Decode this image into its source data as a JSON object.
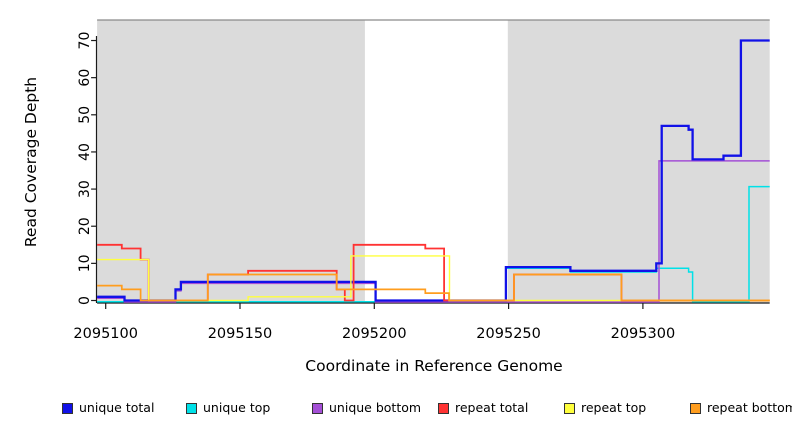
{
  "chart_data": {
    "type": "line",
    "subtype": "step-coverage-plot",
    "title": "",
    "xlabel": "Coordinate in Reference Genome",
    "ylabel": "Read Coverage Depth",
    "xlim": [
      2095096.8,
      2095347.2
    ],
    "ylim": [
      0,
      76
    ],
    "x_ticks": [
      2095100,
      2095150,
      2095200,
      2095250,
      2095300
    ],
    "y_ticks": [
      0,
      10,
      20,
      30,
      40,
      50,
      60,
      70
    ],
    "grid": false,
    "legend_position": "bottom",
    "shade_color": "#dbdbdb",
    "background_shaded_regions": [
      {
        "from": 2095096.8,
        "to": 2095196.5
      },
      {
        "from": 2095249.7,
        "to": 2095347.2
      }
    ],
    "series": [
      {
        "name": "unique total",
        "color": "#1111e8",
        "width": 2.3,
        "steps": [
          [
            2095096.8,
            1
          ],
          [
            2095107,
            0
          ],
          [
            2095126,
            3
          ],
          [
            2095128,
            5
          ],
          [
            2095200.5,
            0
          ],
          [
            2095249,
            9
          ],
          [
            2095273,
            8
          ],
          [
            2095305,
            10
          ],
          [
            2095307,
            47
          ],
          [
            2095317,
            46
          ],
          [
            2095318.5,
            38
          ],
          [
            2095330,
            39
          ],
          [
            2095336.5,
            70
          ]
        ]
      },
      {
        "name": "unique top",
        "color": "#00e1e8",
        "width": 1.5,
        "steps": [
          [
            2095096.8,
            0
          ],
          [
            2095249,
            9
          ],
          [
            2095273,
            8
          ],
          [
            2095305,
            9
          ],
          [
            2095317,
            8
          ],
          [
            2095318.5,
            0
          ],
          [
            2095339.5,
            31
          ]
        ]
      },
      {
        "name": "unique bottom",
        "color": "#a44fd6",
        "width": 1.5,
        "steps": [
          [
            2095096.8,
            1
          ],
          [
            2095107,
            0
          ],
          [
            2095126,
            3
          ],
          [
            2095128,
            5
          ],
          [
            2095200.5,
            0
          ],
          [
            2095306,
            38
          ]
        ]
      },
      {
        "name": "repeat total",
        "color": "#ff3333",
        "width": 1.8,
        "steps": [
          [
            2095096.8,
            15
          ],
          [
            2095106,
            14
          ],
          [
            2095113,
            11
          ],
          [
            2095116,
            0
          ],
          [
            2095138,
            7
          ],
          [
            2095153,
            8
          ],
          [
            2095186,
            3
          ],
          [
            2095189,
            0
          ],
          [
            2095192.3,
            15
          ],
          [
            2095219,
            14
          ],
          [
            2095226,
            0
          ],
          [
            2095252,
            7
          ],
          [
            2095292,
            0
          ]
        ]
      },
      {
        "name": "repeat top",
        "color": "#ffff3d",
        "width": 1.4,
        "steps": [
          [
            2095096.8,
            11
          ],
          [
            2095116,
            0
          ],
          [
            2095153,
            1
          ],
          [
            2095191.3,
            12
          ],
          [
            2095228,
            0
          ]
        ]
      },
      {
        "name": "repeat bottom",
        "color": "#ff9d1e",
        "width": 1.7,
        "steps": [
          [
            2095096.8,
            4
          ],
          [
            2095106,
            3
          ],
          [
            2095113,
            0
          ],
          [
            2095138,
            7
          ],
          [
            2095186,
            3
          ],
          [
            2095219,
            2
          ],
          [
            2095227.8,
            0
          ],
          [
            2095252,
            7
          ],
          [
            2095292,
            0
          ]
        ]
      }
    ],
    "legend": [
      {
        "label": "unique total",
        "color": "#1111e8"
      },
      {
        "label": "unique top",
        "color": "#00e1e8"
      },
      {
        "label": "unique bottom",
        "color": "#a44fd6"
      },
      {
        "label": "repeat total",
        "color": "#ff3333"
      },
      {
        "label": "repeat top",
        "color": "#ffff3d"
      },
      {
        "label": "repeat bottom",
        "color": "#ff9d1e"
      }
    ]
  }
}
